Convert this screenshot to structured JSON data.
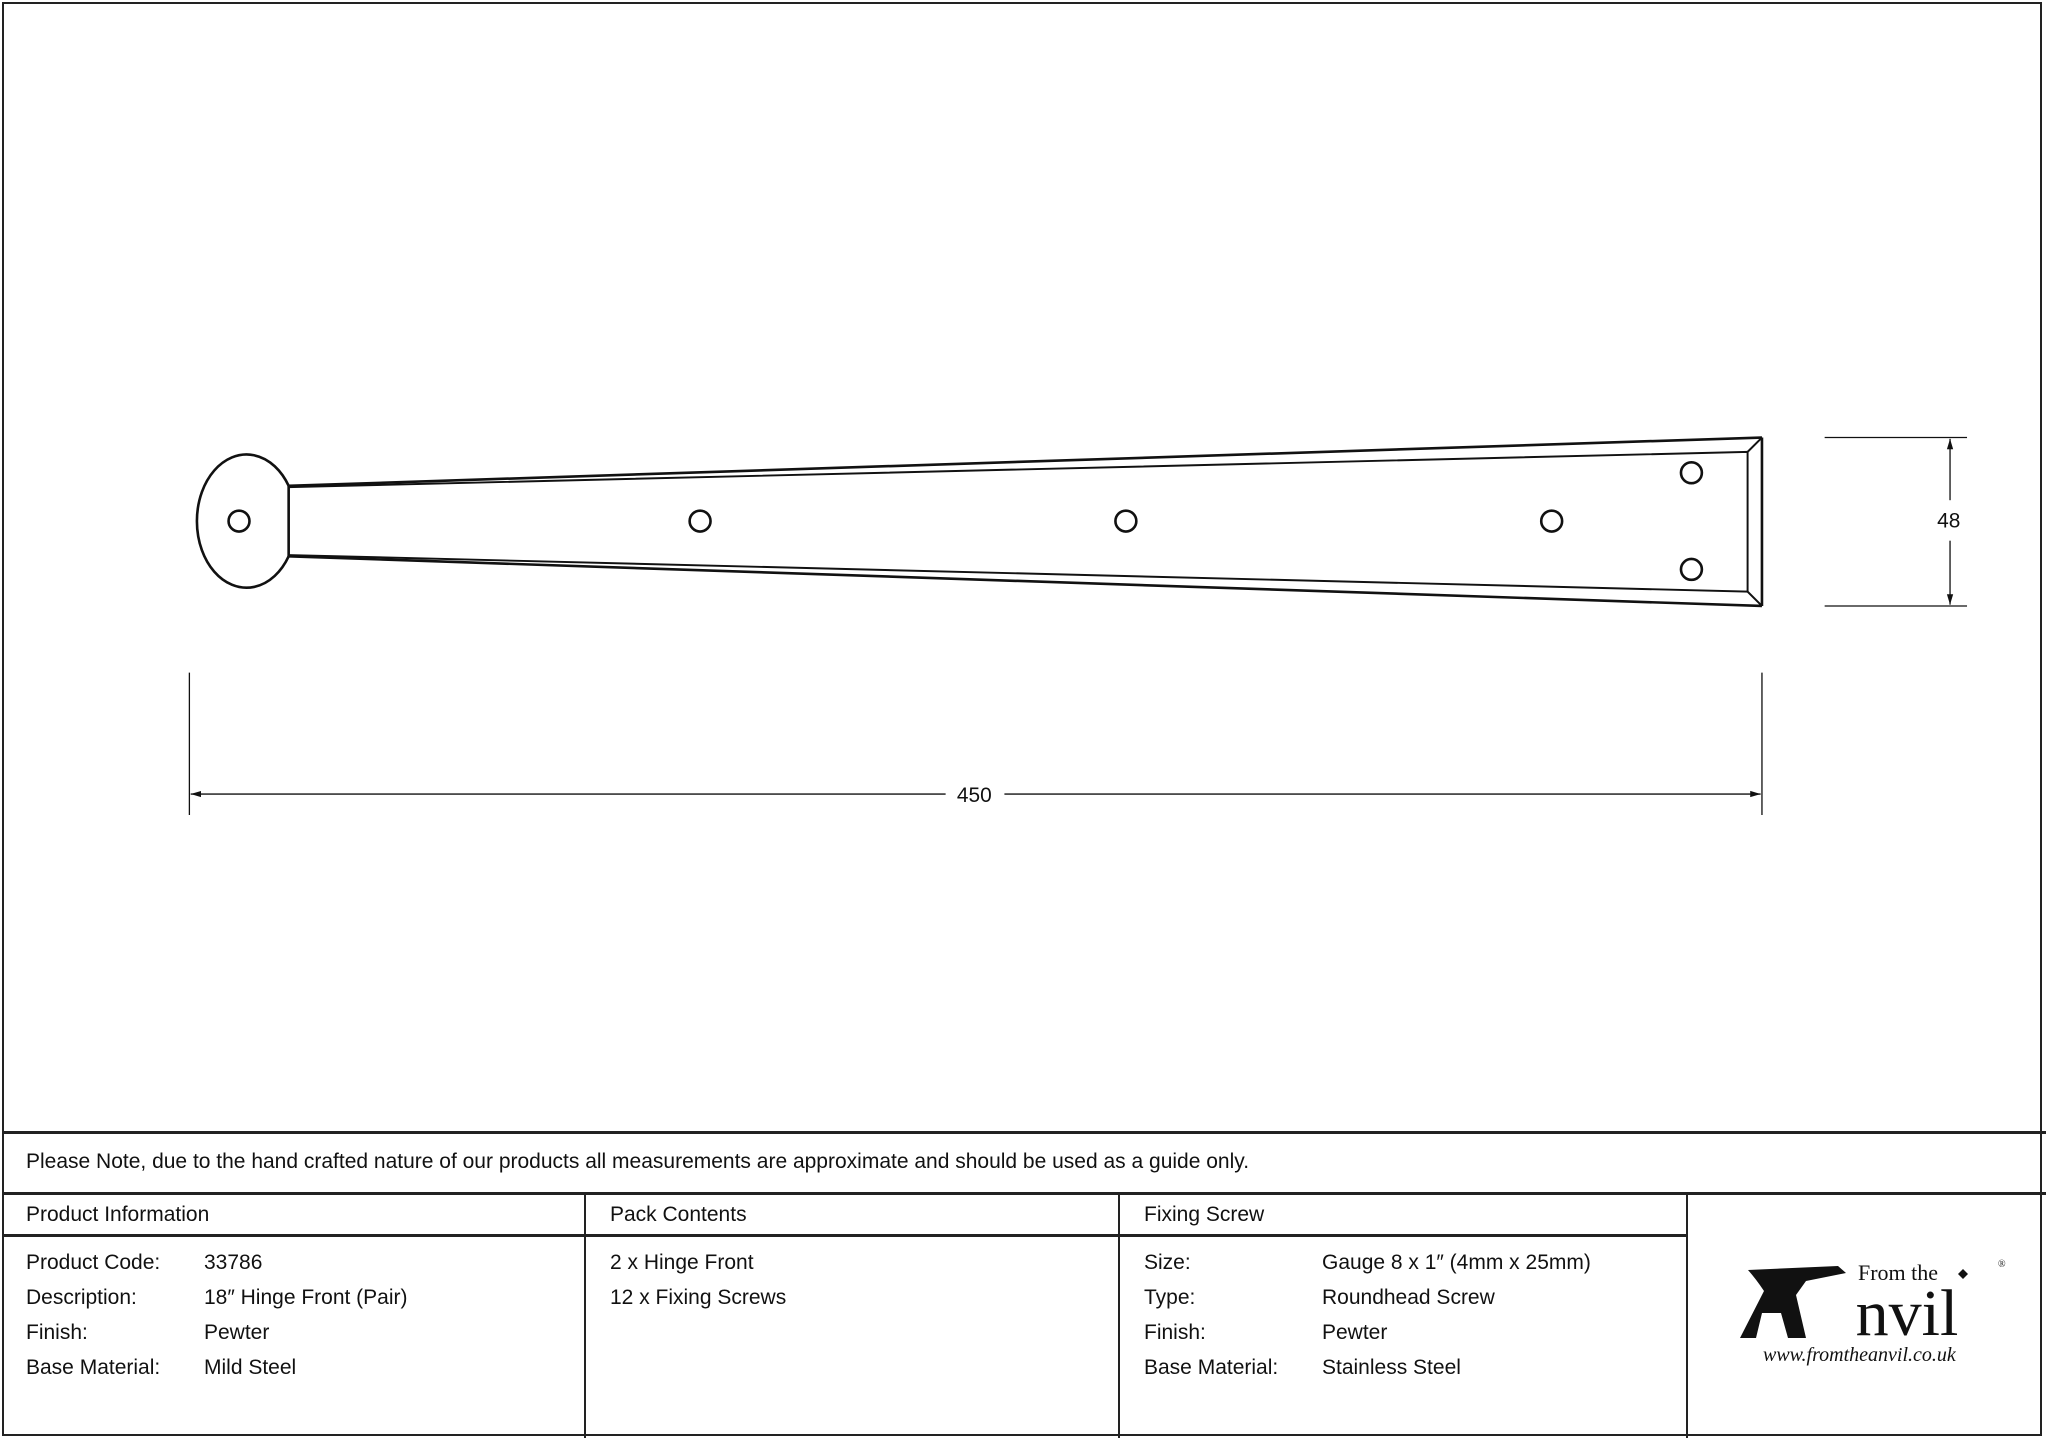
{
  "drawing": {
    "dimensions": {
      "length": "450",
      "width": "48"
    }
  },
  "note": "Please Note, due to the hand crafted nature of our products all measurements are approximate and should be used as a guide only.",
  "product_information": {
    "title": "Product Information",
    "rows": [
      {
        "label": "Product Code:",
        "value": "33786"
      },
      {
        "label": "Description:",
        "value": "18″ Hinge Front (Pair)"
      },
      {
        "label": "Finish:",
        "value": "Pewter"
      },
      {
        "label": "Base Material:",
        "value": "Mild Steel"
      }
    ]
  },
  "pack_contents": {
    "title": "Pack Contents",
    "items": [
      "2 x Hinge Front",
      "12 x Fixing Screws"
    ]
  },
  "fixing_screw": {
    "title": "Fixing Screw",
    "rows": [
      {
        "label": "Size:",
        "value": "Gauge 8 x 1″ (4mm x 25mm)"
      },
      {
        "label": "Type:",
        "value": "Roundhead Screw"
      },
      {
        "label": "Finish:",
        "value": "Pewter"
      },
      {
        "label": "Base Material:",
        "value": "Stainless Steel"
      }
    ]
  },
  "logo": {
    "line1": "From the",
    "line2": "Anvil",
    "url": "www.fromtheanvil.co.uk"
  }
}
